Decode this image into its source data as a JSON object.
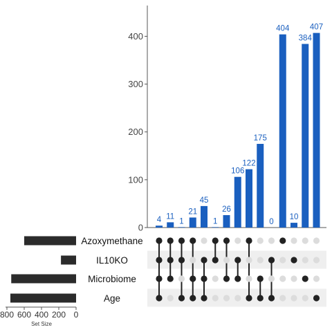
{
  "chart_data": {
    "type": "upset",
    "colors": {
      "intersection_bar": "#1a5fbf",
      "set_bar": "#2b2b2b",
      "dot_active": "#222222",
      "dot_inactive": "#dcdcdc",
      "row_shade": "#efefef",
      "axis": "#555555"
    },
    "sets": [
      {
        "name": "Azoxymethane",
        "size": 600
      },
      {
        "name": "IL10KO",
        "size": 175
      },
      {
        "name": "Microbiome",
        "size": 750
      },
      {
        "name": "Age",
        "size": 760
      }
    ],
    "intersection_axis": {
      "ylim": [
        0,
        440
      ],
      "ticks": [
        0,
        100,
        200,
        300,
        400
      ]
    },
    "set_size_axis": {
      "title": "Set Size",
      "xlim_reversed": [
        0,
        800
      ],
      "ticks": [
        800,
        600,
        400,
        200,
        0
      ],
      "tick_labels": [
        "800",
        "600",
        "400",
        "200",
        "0"
      ]
    },
    "intersections": [
      {
        "value": 4,
        "label": "4",
        "members": [
          "Azoxymethane",
          "IL10KO",
          "Microbiome",
          "Age"
        ]
      },
      {
        "value": 11,
        "label": "11",
        "members": [
          "Azoxymethane",
          "IL10KO",
          "Microbiome"
        ]
      },
      {
        "value": 1,
        "label": "1",
        "members": [
          "Azoxymethane",
          "IL10KO",
          "Age"
        ]
      },
      {
        "value": 21,
        "label": "21",
        "members": [
          "Azoxymethane",
          "Microbiome",
          "Age"
        ]
      },
      {
        "value": 45,
        "label": "45",
        "members": [
          "IL10KO",
          "Microbiome",
          "Age"
        ]
      },
      {
        "value": 1,
        "label": "1",
        "members": [
          "Azoxymethane",
          "IL10KO"
        ]
      },
      {
        "value": 26,
        "label": "26",
        "members": [
          "Azoxymethane",
          "Microbiome"
        ]
      },
      {
        "value": 106,
        "label": "106",
        "members": [
          "IL10KO",
          "Microbiome"
        ]
      },
      {
        "value": 122,
        "label": "122",
        "members": [
          "Azoxymethane",
          "Age"
        ]
      },
      {
        "value": 175,
        "label": "175",
        "members": [
          "Microbiome",
          "Age"
        ]
      },
      {
        "value": 0,
        "label": "0",
        "members": [
          "IL10KO",
          "Age"
        ]
      },
      {
        "value": 404,
        "label": "404",
        "members": [
          "Azoxymethane"
        ]
      },
      {
        "value": 10,
        "label": "10",
        "members": [
          "IL10KO"
        ]
      },
      {
        "value": 384,
        "label": "384",
        "members": [
          "Microbiome"
        ]
      },
      {
        "value": 407,
        "label": "407",
        "members": [
          "Age"
        ]
      }
    ]
  }
}
